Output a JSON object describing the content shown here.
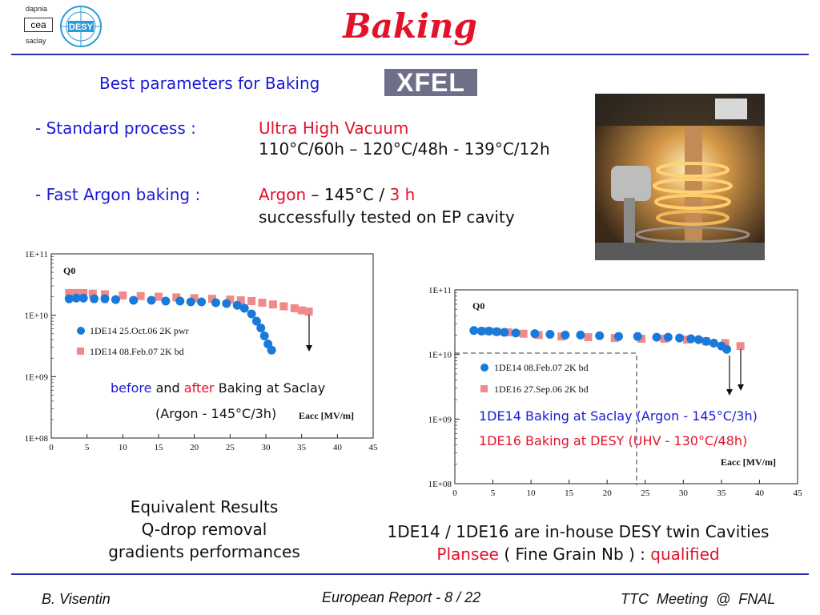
{
  "header": {
    "title": "Baking",
    "logo_lines": [
      "dapnia",
      "cea",
      "saclay"
    ],
    "desy_logo": "DESY",
    "xfel_logo": "XFEL"
  },
  "intro": {
    "heading": "Best parameters for Baking"
  },
  "params": {
    "standard_label": "- Standard process :",
    "standard_value_1": "Ultra High Vacuum",
    "standard_value_2": "110°C/60h – 120°C/48h - 139°C/12h",
    "fast_label": "- Fast Argon baking :",
    "fast_value_argon": "Argon",
    "fast_value_mid": " – 145°C / ",
    "fast_value_time": "3 h",
    "fast_value_2": "successfully tested on EP cavity"
  },
  "chart_data": [
    {
      "type": "scatter",
      "title": "Q0",
      "xlabel": "Eacc [MV/m]",
      "ylabel": "Q0",
      "xlim": [
        0,
        45
      ],
      "ylim": [
        100000000.0,
        100000000000.0
      ],
      "yscale": "log",
      "xticks": [
        "0",
        "5",
        "10",
        "15",
        "20",
        "25",
        "30",
        "35",
        "40",
        "45"
      ],
      "yticks": [
        "1E+08",
        "1E+09",
        "1E+10",
        "1E+11"
      ],
      "series": [
        {
          "name": "1DE14 25.Oct.06 2K pwr",
          "color": "#1a7ad9",
          "marker": "circle",
          "x": [
            2.5,
            3.5,
            4.5,
            6,
            7.5,
            9,
            11.5,
            14,
            16,
            18,
            19.5,
            21,
            23,
            24.5,
            26,
            27,
            28,
            28.7,
            29.3,
            29.8,
            30.3,
            30.8
          ],
          "y": [
            18500000000.0,
            19000000000.0,
            19000000000.0,
            18500000000.0,
            18500000000.0,
            18000000000.0,
            17500000000.0,
            17500000000.0,
            17000000000.0,
            17000000000.0,
            16500000000.0,
            16500000000.0,
            16000000000.0,
            15500000000.0,
            14500000000.0,
            13000000000.0,
            10500000000.0,
            8000000000.0,
            6200000000.0,
            4600000000.0,
            3400000000.0,
            2700000000.0
          ]
        },
        {
          "name": "1DE14 08.Feb.07 2K bd",
          "color": "#f08a8a",
          "marker": "square",
          "x": [
            2.5,
            3.5,
            4.5,
            5.8,
            7.5,
            10,
            12.5,
            15,
            17.5,
            20,
            22.5,
            25,
            26.5,
            28,
            29.5,
            31,
            32.5,
            34,
            35,
            36
          ],
          "y": [
            23000000000.0,
            23000000000.0,
            23000000000.0,
            22500000000.0,
            22000000000.0,
            21000000000.0,
            20500000000.0,
            20000000000.0,
            19500000000.0,
            19000000000.0,
            18500000000.0,
            18000000000.0,
            17500000000.0,
            17000000000.0,
            16000000000.0,
            15000000000.0,
            14000000000.0,
            13000000000.0,
            12000000000.0,
            11500000000.0
          ]
        }
      ],
      "annotations": {
        "before": "before",
        "and": " and ",
        "after": "after",
        "rest": " Baking at Saclay",
        "argon": "(Argon - 145°C/3h)"
      }
    },
    {
      "type": "scatter",
      "title": "Q0",
      "xlabel": "Eacc [MV/m]",
      "ylabel": "Q0",
      "xlim": [
        0,
        45
      ],
      "ylim": [
        100000000.0,
        100000000000.0
      ],
      "yscale": "log",
      "xticks": [
        "0",
        "5",
        "10",
        "15",
        "20",
        "25",
        "30",
        "35",
        "40",
        "45"
      ],
      "yticks": [
        "1E+08",
        "1E+09",
        "1E+10",
        "1E+11"
      ],
      "series": [
        {
          "name": "1DE14 08.Feb.07 2K bd",
          "color": "#1a7ad9",
          "marker": "circle",
          "x": [
            2.5,
            3.5,
            4.5,
            5.5,
            6.5,
            8,
            10.5,
            12.5,
            14.5,
            16.5,
            19,
            21.5,
            24,
            26.5,
            28,
            29.5,
            31,
            32,
            33,
            34,
            35,
            35.7
          ],
          "y": [
            23500000000.0,
            23000000000.0,
            23000000000.0,
            22500000000.0,
            22000000000.0,
            21500000000.0,
            21000000000.0,
            20500000000.0,
            20000000000.0,
            20000000000.0,
            19500000000.0,
            19000000000.0,
            19000000000.0,
            18500000000.0,
            18500000000.0,
            18000000000.0,
            17500000000.0,
            17000000000.0,
            16000000000.0,
            15000000000.0,
            13500000000.0,
            12000000000.0
          ]
        },
        {
          "name": "1DE16 27.Sep.06 2K bd",
          "color": "#f08a8a",
          "marker": "square",
          "x": [
            4,
            5.5,
            7,
            9,
            11,
            14,
            17.5,
            21,
            24.5,
            27.5,
            30.5,
            33,
            35.5,
            37.5
          ],
          "y": [
            23000000000.0,
            22500000000.0,
            22000000000.0,
            21000000000.0,
            20000000000.0,
            19000000000.0,
            18500000000.0,
            18000000000.0,
            17500000000.0,
            17500000000.0,
            17000000000.0,
            16000000000.0,
            15000000000.0,
            13500000000.0
          ]
        }
      ],
      "annotations": {
        "line1": "1DE14 Baking at Saclay (Argon - 145°C/3h)",
        "line2": "1DE16 Baking at DESY (UHV - 130°C/48h)"
      }
    }
  ],
  "conclusions": {
    "left_1": "Equivalent Results",
    "left_2": "Q-drop removal",
    "left_3": "gradients performances",
    "right_1": "1DE14 / 1DE16 are in-house DESY twin Cavities",
    "right_2_red1": "Plansee",
    "right_2_black": " ( Fine Grain Nb ) : ",
    "right_2_red2": "qualified"
  },
  "footer": {
    "author": "B. Visentin",
    "center": "European Report - 8 / 22",
    "right": "TTC  Meeting  @  FNAL"
  },
  "colors": {
    "accent_red": "#e3122a",
    "accent_blue": "#1a1ad6",
    "rule_blue": "#2a2fb6"
  }
}
